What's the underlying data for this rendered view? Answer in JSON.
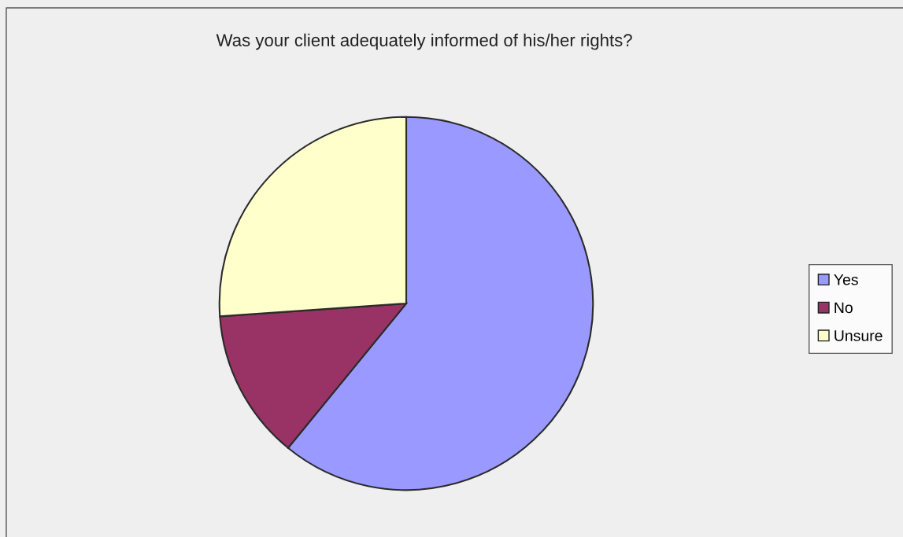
{
  "chart_data": {
    "type": "pie",
    "title": "Was your client adequately informed of his/her rights?",
    "categories": [
      "Yes",
      "No",
      "Unsure"
    ],
    "values": [
      60.9,
      13.0,
      26.1
    ],
    "colors": [
      "#9999ff",
      "#993366",
      "#ffffcc"
    ],
    "legend": "right"
  }
}
